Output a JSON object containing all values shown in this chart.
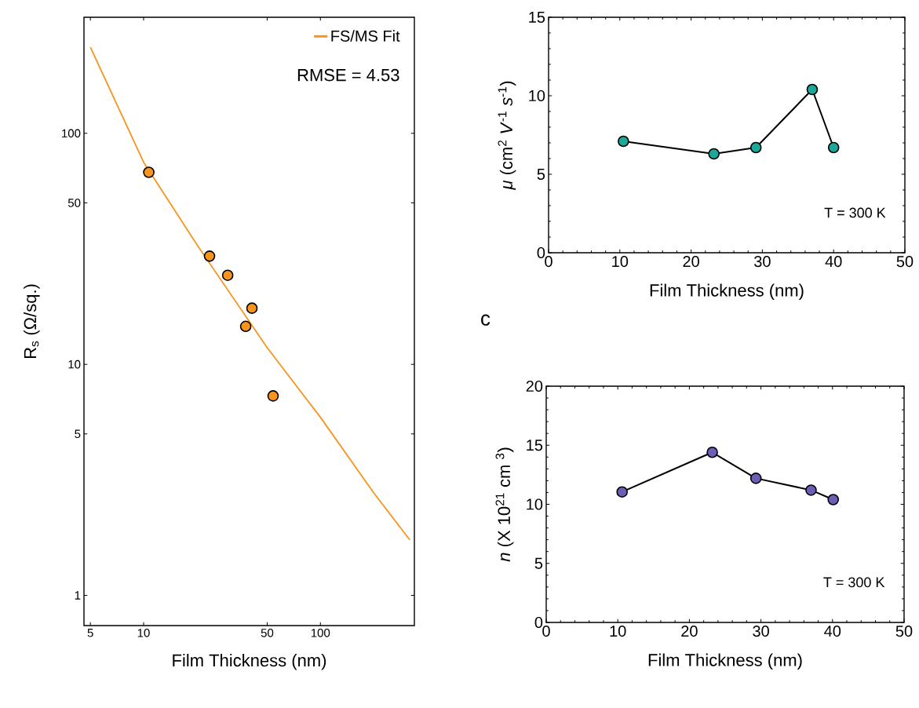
{
  "chart_data": [
    {
      "type": "scatter",
      "log": "xy",
      "xlabel": "Film Thickness  (nm)",
      "ylabel": "R$_{s}$  (Ω/sq.)",
      "legend": "top right",
      "marker": "circle",
      "xlim": [
        4.6,
        340
      ],
      "ylim": [
        0.74,
        318
      ],
      "xticks": [
        5,
        10,
        50,
        100
      ],
      "yticks": [
        1,
        5,
        10,
        50,
        100
      ],
      "annotations": [
        "RMSE = 4.53"
      ],
      "series": [
        {
          "type": "scatter",
          "color": "#f7941d",
          "x": [
            10.7,
            23.6,
            29.9,
            37.8,
            41.0,
            54
          ],
          "values": [
            67.8,
            29.4,
            24.3,
            14.6,
            17.5,
            7.3
          ]
        },
        {
          "type": "line",
          "name": "FS/MS Fit",
          "color": "#f7941d",
          "marker": "none",
          "x": [
            5,
            10,
            20,
            50,
            100,
            200,
            320
          ],
          "values": [
            236,
            75,
            33,
            11.8,
            5.9,
            2.78,
            1.74
          ]
        }
      ]
    },
    {
      "type": "line",
      "marker": "circle",
      "xlabel": "Film Thickness  (nm)",
      "ylabel": "*μ*  (cm$^{2}$ *V*$^{-1}$ *s*$^{-1}$)",
      "xlim": [
        0,
        50
      ],
      "ylim": [
        0,
        15
      ],
      "xticks": [
        0,
        10,
        20,
        30,
        40,
        50
      ],
      "yticks": [
        0,
        5,
        10,
        15
      ],
      "annotations": [
        "T = 300 K"
      ],
      "series": [
        {
          "color": "#1aa89a",
          "x": [
            10.5,
            23.2,
            29.1,
            37.0,
            40.0
          ],
          "values": [
            7.1,
            6.3,
            6.7,
            10.4,
            6.7
          ]
        }
      ]
    },
    {
      "type": "line",
      "marker": "circle",
      "xlabel": "Film Thickness  (nm)",
      "ylabel": "*n*  (X 10$^{21}$ cm $^{3}$)",
      "xlim": [
        0,
        50
      ],
      "ylim": [
        0,
        20
      ],
      "xticks": [
        0,
        10,
        20,
        30,
        40,
        50
      ],
      "yticks": [
        0,
        5,
        10,
        15,
        20
      ],
      "annotations": [
        "c",
        "T = 300 K"
      ],
      "series": [
        {
          "color": "#6a5fb5",
          "x": [
            10.6,
            23.2,
            29.3,
            37.0,
            40.1
          ],
          "values": [
            11.05,
            14.4,
            12.2,
            11.2,
            10.4
          ]
        }
      ]
    }
  ]
}
